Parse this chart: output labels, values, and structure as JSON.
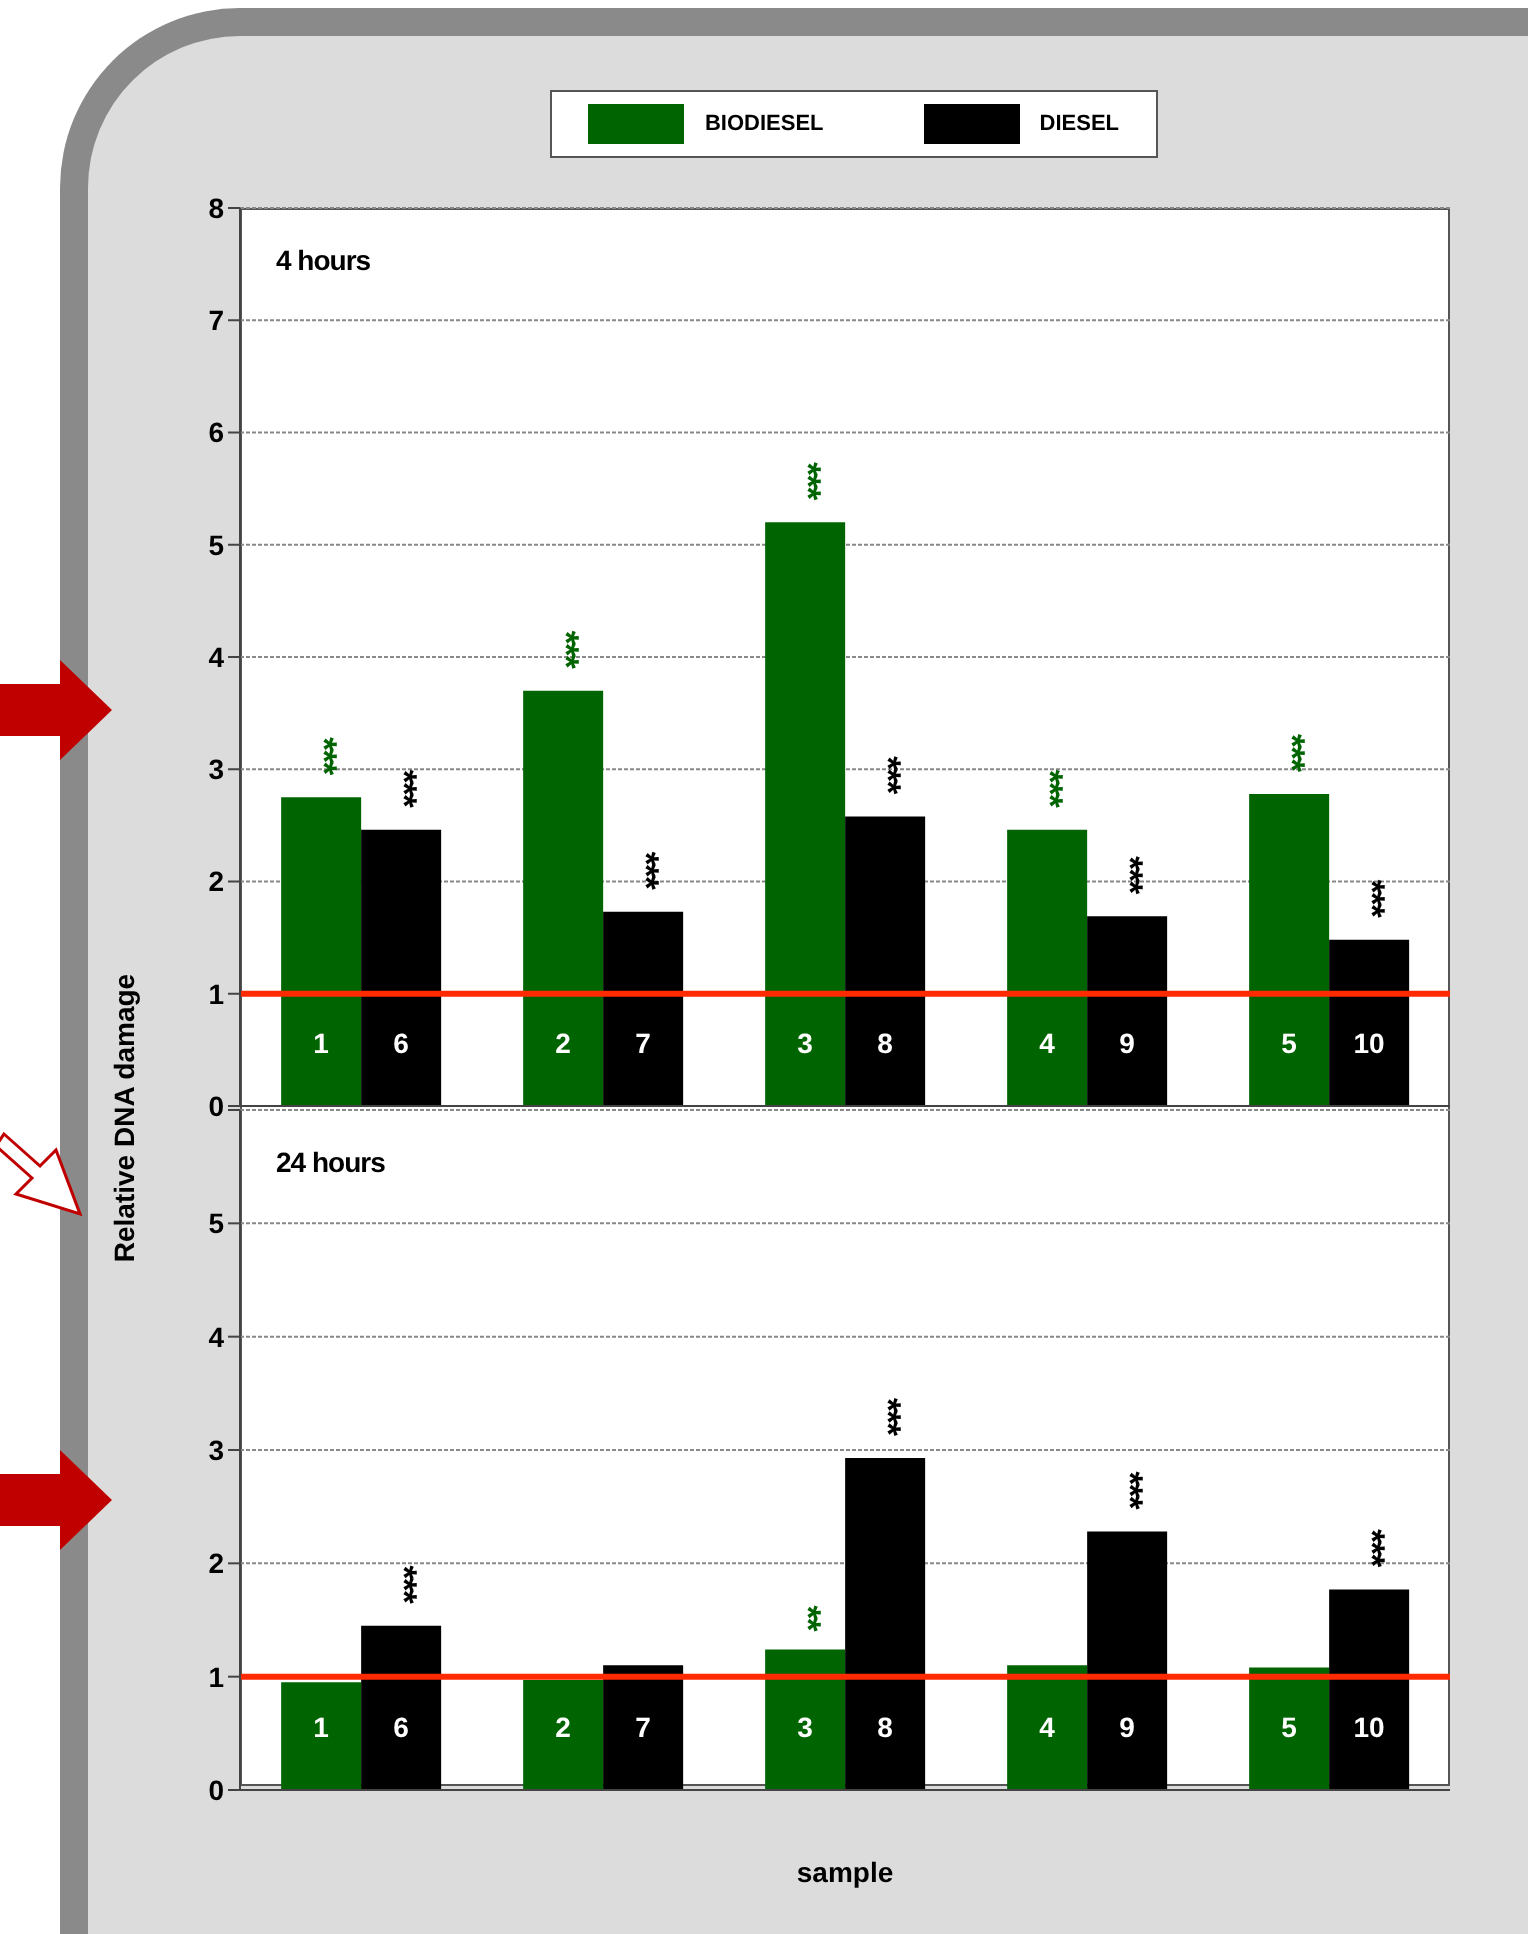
{
  "chart_data": [
    {
      "type": "bar",
      "title": "4 hours",
      "categories": [
        null,
        null,
        null,
        null,
        null
      ],
      "series": [
        {
          "name": "BIODIESEL",
          "color": "#006400",
          "values": [
            2.75,
            3.7,
            5.2,
            2.46,
            2.78
          ],
          "value_labels": [
            "***",
            "***",
            "***",
            "***",
            "***"
          ]
        },
        {
          "name": "DIESEL",
          "color": "#000000",
          "values": [
            2.46,
            1.73,
            2.58,
            1.69,
            1.48
          ],
          "value_labels": [
            "***",
            "***",
            "***",
            "***",
            "***"
          ]
        }
      ],
      "ylim": [
        0,
        8
      ],
      "yticks": [
        0,
        1,
        2,
        3,
        4,
        5,
        6,
        7,
        8
      ],
      "grid": "y",
      "legend": "top",
      "ref_lines": [
        {
          "axis": "y",
          "value": 1,
          "color": "#ff2a00"
        }
      ],
      "annotations": [
        "1",
        "6",
        "2",
        "7",
        "3",
        "8",
        "4",
        "9",
        "5",
        "10"
      ]
    },
    {
      "type": "bar",
      "title": "24 hours",
      "xlabel": "sample",
      "ylabel": "Relative DNA damage",
      "categories": [
        null,
        null,
        null,
        null,
        null
      ],
      "series": [
        {
          "color": "#006400",
          "values": [
            0.95,
            0.97,
            1.24,
            1.1,
            1.08
          ],
          "value_labels": [
            null,
            null,
            "**",
            null,
            null
          ]
        },
        {
          "color": "#000000",
          "values": [
            1.45,
            1.1,
            2.93,
            2.28,
            1.77
          ],
          "value_labels": [
            "***",
            null,
            "***",
            "***",
            "***"
          ]
        }
      ],
      "ylim": [
        0,
        6
      ],
      "yticks": [
        0,
        1,
        2,
        3,
        4,
        5,
        {
          "value": 6,
          "label": null
        }
      ],
      "grid": "y",
      "ref_lines": [
        {
          "axis": "y",
          "value": 1,
          "color": "#ff2a00"
        }
      ],
      "annotations": [
        "1",
        "6",
        "2",
        "7",
        "3",
        "8",
        "4",
        "9",
        "5",
        "10"
      ]
    }
  ]
}
